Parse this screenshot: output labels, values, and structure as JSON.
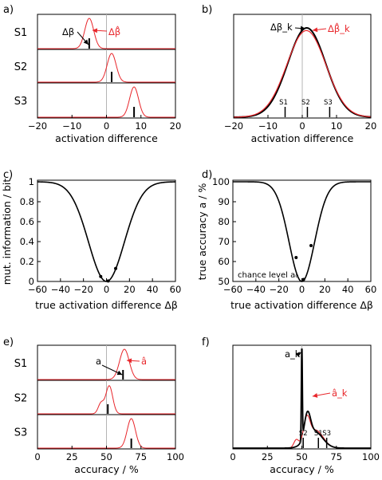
{
  "colors": {
    "estimate": "#e8262b",
    "truth": "#000000",
    "reference": "#b4b4b4"
  },
  "chart_data": [
    {
      "panel": "a)",
      "type": "line",
      "xlabel": "activation difference",
      "xlim": [
        -20,
        20
      ],
      "xticks": [
        "−20",
        "−10",
        "0",
        "10",
        "20"
      ],
      "reference_x": 0,
      "annotations": {
        "true": "Δβ",
        "estimate": "Δβ̂"
      },
      "rows": [
        {
          "label": "S1",
          "true_value": -5,
          "estimate_mean": -5,
          "estimate_sd": 1.3
        },
        {
          "label": "S2",
          "true_value": 1.5,
          "estimate_mean": 1.5,
          "estimate_sd": 1.3
        },
        {
          "label": "S3",
          "true_value": 8,
          "estimate_mean": 8,
          "estimate_sd": 1.3
        }
      ]
    },
    {
      "panel": "b)",
      "type": "line",
      "xlabel": "activation difference",
      "xlim": [
        -20,
        20
      ],
      "xticks": [
        "−20",
        "−10",
        "0",
        "10",
        "20"
      ],
      "reference_x": 0,
      "annotations": {
        "true": "Δβ_k",
        "estimate": "Δβ̂_k"
      },
      "true_curve": {
        "mean": 1.3,
        "sd": 5.5,
        "peak": 1.0
      },
      "estimate_curve": {
        "mean": 1.2,
        "sd": 5.7,
        "peak": 0.97
      },
      "markers": [
        {
          "label": "S1",
          "x": -5
        },
        {
          "label": "S2",
          "x": 1.5
        },
        {
          "label": "S3",
          "x": 8
        }
      ]
    },
    {
      "panel": "c)",
      "type": "line",
      "xlabel": "true activation difference Δβ",
      "ylabel": "mut. information / bit",
      "xlim": [
        -60,
        60
      ],
      "ylim": [
        0,
        1
      ],
      "xticks": [
        "−60",
        "−40",
        "−20",
        "0",
        "20",
        "40",
        "60"
      ],
      "yticks": [
        "0",
        "0.2",
        "0.4",
        "0.6",
        "0.8",
        "1"
      ],
      "curve": "1 - exp(-(x/22)^2)",
      "points": [
        {
          "x": -5,
          "y": 0.05
        },
        {
          "x": 1.5,
          "y": 0.005
        },
        {
          "x": 8,
          "y": 0.13
        }
      ]
    },
    {
      "panel": "d)",
      "type": "line",
      "xlabel": "true activation difference Δβ",
      "ylabel": "true accuracy a / %",
      "xlim": [
        -60,
        60
      ],
      "ylim": [
        50,
        100
      ],
      "xticks": [
        "−60",
        "−40",
        "−20",
        "0",
        "20",
        "40",
        "60"
      ],
      "yticks": [
        "50",
        "60",
        "70",
        "80",
        "90",
        "100"
      ],
      "chance_label": "chance level a₀",
      "curve": "50 + 50*(1 - exp(-0.8*(x/14)^2))",
      "points": [
        {
          "x": -5,
          "y": 62
        },
        {
          "x": 1.5,
          "y": 51
        },
        {
          "x": 8,
          "y": 68
        }
      ]
    },
    {
      "panel": "e)",
      "type": "line",
      "xlabel": "accuracy / %",
      "xlim": [
        0,
        100
      ],
      "xticks": [
        "0",
        "25",
        "50",
        "75",
        "100"
      ],
      "reference_x": 50,
      "annotations": {
        "true": "a",
        "estimate": "â"
      },
      "rows": [
        {
          "label": "S1",
          "true_value": 62,
          "estimate": [
            {
              "mean": 63,
              "sd": 3.5,
              "amp": 1.0
            }
          ]
        },
        {
          "label": "S2",
          "true_value": 51,
          "estimate": [
            {
              "mean": 52,
              "sd": 2.5,
              "amp": 0.95
            },
            {
              "mean": 46,
              "sd": 2.0,
              "amp": 0.35
            }
          ]
        },
        {
          "label": "S3",
          "true_value": 68,
          "estimate": [
            {
              "mean": 68,
              "sd": 3.0,
              "amp": 1.0
            }
          ]
        }
      ]
    },
    {
      "panel": "f)",
      "type": "line",
      "xlabel": "accuracy / %",
      "xlim": [
        0,
        100
      ],
      "xticks": [
        "0",
        "25",
        "50",
        "75",
        "100"
      ],
      "reference_x": 50,
      "annotations": {
        "true": "a_k",
        "estimate": "â_k"
      },
      "true_curve": [
        {
          "mean": 50,
          "sd": 0.35,
          "amp": 1.0
        },
        {
          "mean": 54,
          "sd": 2.2,
          "amp": 0.25
        },
        {
          "mean": 59,
          "sd": 6.0,
          "amp": 0.17
        }
      ],
      "estimate_curve": [
        {
          "mean": 46,
          "sd": 1.8,
          "amp": 0.08
        },
        {
          "mean": 53.5,
          "sd": 2.3,
          "amp": 0.24
        },
        {
          "mean": 60,
          "sd": 5.5,
          "amp": 0.18
        }
      ],
      "markers": [
        {
          "label": "S2",
          "x": 51
        },
        {
          "label": "S1",
          "x": 62
        },
        {
          "label": "S3",
          "x": 68
        }
      ]
    }
  ]
}
